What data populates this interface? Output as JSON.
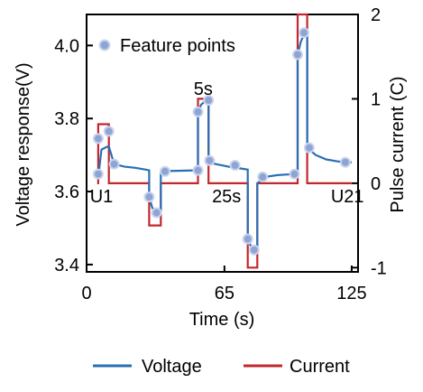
{
  "chart_data": {
    "type": "line",
    "xlabel": "Time (s)",
    "ylabel": "Voltage response(V)",
    "y2label": "Pulse current (C)",
    "xlim": [
      0,
      128
    ],
    "ylim": [
      3.38,
      4.085
    ],
    "y2lim": [
      -1.05,
      2.0
    ],
    "xticks": [
      0,
      65,
      125
    ],
    "yticks": [
      3.4,
      3.6,
      3.8,
      4.0
    ],
    "yticklabels": [
      "3.4",
      "3.6",
      "3.8",
      "4.0"
    ],
    "y2ticks": [
      -1,
      0,
      1,
      2
    ],
    "annotations": [
      {
        "text": "U1",
        "x": 7,
        "y": 3.57
      },
      {
        "text": "5s",
        "x": 55,
        "y": 3.865
      },
      {
        "text": "25s",
        "x": 66,
        "y": 3.57
      },
      {
        "text": "U21",
        "x": 123,
        "y": 3.57
      }
    ],
    "feature_points_label": "Feature points",
    "series": [
      {
        "name": "Voltage",
        "color": "#2a6fb5",
        "points": [
          [
            5.5,
            3.639
          ],
          [
            7,
            3.715
          ],
          [
            9.5,
            3.722
          ],
          [
            10.5,
            3.723
          ],
          [
            13,
            3.675
          ],
          [
            18,
            3.668
          ],
          [
            23,
            3.665
          ],
          [
            28,
            3.66
          ],
          [
            29.5,
            3.658
          ],
          [
            29.5,
            3.585
          ],
          [
            31,
            3.555
          ],
          [
            33,
            3.542
          ],
          [
            35,
            3.54
          ],
          [
            35,
            3.655
          ],
          [
            38,
            3.656
          ],
          [
            45,
            3.657
          ],
          [
            51,
            3.658
          ],
          [
            52.5,
            3.658
          ],
          [
            52.5,
            3.818
          ],
          [
            54,
            3.838
          ],
          [
            56,
            3.848
          ],
          [
            57.5,
            3.85
          ],
          [
            57.5,
            3.68
          ],
          [
            61,
            3.675
          ],
          [
            67,
            3.668
          ],
          [
            74,
            3.662
          ],
          [
            76,
            3.66
          ],
          [
            76,
            3.47
          ],
          [
            77.5,
            3.45
          ],
          [
            79,
            3.44
          ],
          [
            80.5,
            3.436
          ],
          [
            80.5,
            3.622
          ],
          [
            84,
            3.64
          ],
          [
            90,
            3.645
          ],
          [
            98,
            3.648
          ],
          [
            99.5,
            3.648
          ],
          [
            99.5,
            3.975
          ],
          [
            101,
            4.01
          ],
          [
            102.5,
            4.03
          ],
          [
            104,
            4.035
          ],
          [
            104,
            3.72
          ],
          [
            108,
            3.7
          ],
          [
            113,
            3.688
          ],
          [
            119,
            3.682
          ],
          [
            125,
            3.68
          ]
        ]
      },
      {
        "name": "Current",
        "color": "#c1272d",
        "points": [
          [
            5,
            0
          ],
          [
            5.5,
            0
          ],
          [
            5.5,
            0.7
          ],
          [
            10.5,
            0.7
          ],
          [
            10.5,
            0
          ],
          [
            29.5,
            0
          ],
          [
            29.5,
            -0.5
          ],
          [
            35,
            -0.5
          ],
          [
            35,
            0
          ],
          [
            52.5,
            0
          ],
          [
            52.5,
            1.0
          ],
          [
            57.5,
            1.0
          ],
          [
            57.5,
            0
          ],
          [
            76,
            0
          ],
          [
            76,
            -1.0
          ],
          [
            80.5,
            -1.0
          ],
          [
            80.5,
            0
          ],
          [
            99.5,
            0
          ],
          [
            99.5,
            2.0
          ],
          [
            104,
            2.0
          ],
          [
            104,
            0
          ],
          [
            125,
            0
          ]
        ]
      }
    ],
    "feature_points": [
      [
        5.5,
        3.648
      ],
      [
        5.5,
        3.745
      ],
      [
        10.5,
        3.765
      ],
      [
        13,
        3.675
      ],
      [
        29.5,
        3.585
      ],
      [
        33,
        3.542
      ],
      [
        37,
        3.655
      ],
      [
        52.5,
        3.658
      ],
      [
        52.5,
        3.818
      ],
      [
        57.5,
        3.85
      ],
      [
        58,
        3.685
      ],
      [
        70,
        3.672
      ],
      [
        76,
        3.47
      ],
      [
        79,
        3.44
      ],
      [
        83,
        3.64
      ],
      [
        98,
        3.648
      ],
      [
        99.5,
        3.975
      ],
      [
        102.5,
        4.035
      ],
      [
        105,
        3.72
      ],
      [
        122,
        3.68
      ]
    ],
    "legend": [
      {
        "label": "Voltage",
        "color": "#2a6fb5"
      },
      {
        "label": "Current",
        "color": "#c1272d"
      }
    ],
    "grid": false,
    "legend_position": "bottom"
  }
}
